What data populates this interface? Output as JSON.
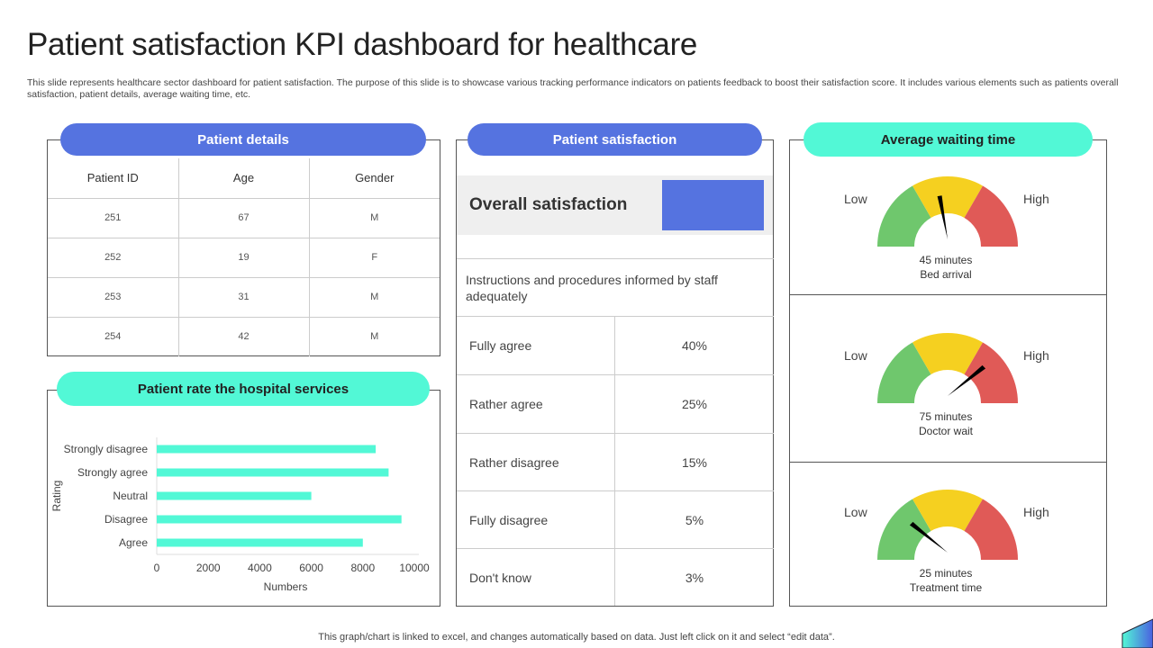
{
  "title": "Patient satisfaction KPI dashboard for healthcare",
  "description": "This slide represents healthcare sector dashboard for patient satisfaction. The purpose of this slide is to showcase various tracking performance indicators on patients feedback to boost their satisfaction score. It includes various elements such as patients overall satisfaction, patient details, average waiting time, etc.",
  "patient_details": {
    "title": "Patient details",
    "headers": [
      "Patient ID",
      "Age",
      "Gender"
    ],
    "rows": [
      [
        "251",
        "67",
        "M"
      ],
      [
        "252",
        "19",
        "F"
      ],
      [
        "253",
        "31",
        "M"
      ],
      [
        "254",
        "42",
        "M"
      ]
    ]
  },
  "hospital_services": {
    "title": "Patient rate the hospital services"
  },
  "chart_data": {
    "type": "bar",
    "orientation": "horizontal",
    "categories": [
      "Strongly disagree",
      "Strongly agree",
      "Neutral",
      "Disagree",
      "Agree"
    ],
    "values": [
      8500,
      9000,
      6000,
      9500,
      8000
    ],
    "xlabel": "Numbers",
    "ylabel": "Rating",
    "xlim": [
      0,
      10000
    ],
    "xticks": [
      "0",
      "2000",
      "4000",
      "6000",
      "8000",
      "10000"
    ],
    "color": "#52f8d6",
    "grid": false
  },
  "satisfaction": {
    "title": "Patient satisfaction",
    "overall_label": "Overall satisfaction",
    "overall_color": "#5573e0",
    "question": "Instructions and procedures informed by staff adequately",
    "rows": [
      {
        "label": "Fully agree",
        "value": "40%"
      },
      {
        "label": "Rather agree",
        "value": "25%"
      },
      {
        "label": "Rather disagree",
        "value": "15%"
      },
      {
        "label": "Fully disagree",
        "value": "5%"
      },
      {
        "label": "Don't know",
        "value": "3%"
      }
    ]
  },
  "waiting": {
    "title": "Average waiting time",
    "low": "Low",
    "high": "High",
    "gauges": [
      {
        "value": "45 minutes",
        "label": "Bed arrival",
        "level": 0.45
      },
      {
        "value": "75 minutes",
        "label": "Doctor wait",
        "level": 0.75
      },
      {
        "value": "25 minutes",
        "label": "Treatment time",
        "level": 0.25
      }
    ],
    "colors": {
      "low": "#6fc76d",
      "mid": "#f5d020",
      "high": "#e05a57"
    }
  },
  "footer": "This graph/chart is linked to excel, and changes automatically based on data. Just left click on it and select “edit data”."
}
